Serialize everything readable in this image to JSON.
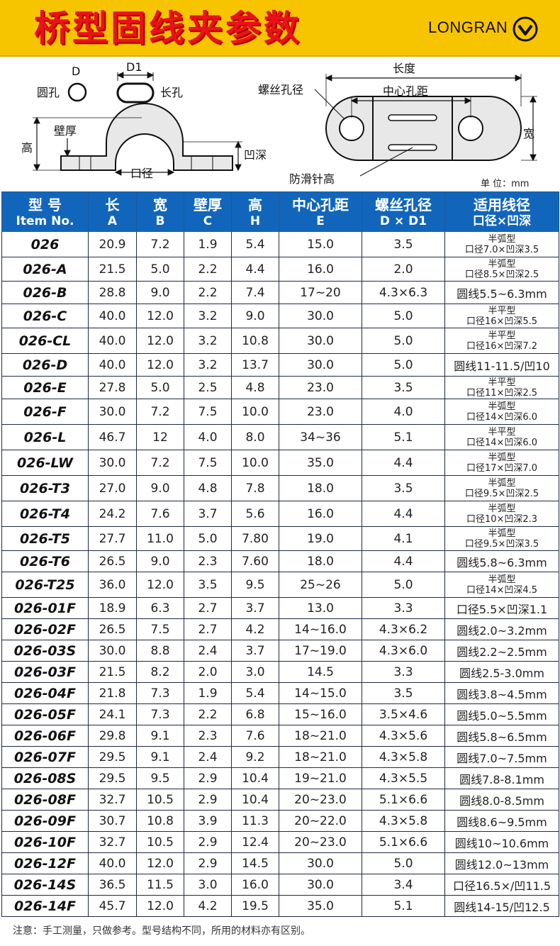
{
  "header": {
    "title": "桥型固线夹参数",
    "brand": "LONGRAN",
    "logo_icon": "chevron-down-circle-icon"
  },
  "diagram": {
    "round_hole_letter": "D",
    "round_hole_label": "圆孔",
    "long_hole_letter": "D1",
    "long_hole_label": "长孔",
    "wall_label": "壁厚",
    "height_label": "高",
    "groove_label": "凹深",
    "mouth_label": "口径",
    "length_label": "长度",
    "screw_label": "螺丝孔径",
    "center_label": "中心孔距",
    "width_label": "宽",
    "antislip_label": "防滑针高",
    "unit": "单 位：mm"
  },
  "table": {
    "headers": [
      {
        "l1": "型 号",
        "l2": "Item No."
      },
      {
        "l1": "长",
        "l2": "A"
      },
      {
        "l1": "宽",
        "l2": "B"
      },
      {
        "l1": "壁厚",
        "l2": "C"
      },
      {
        "l1": "高",
        "l2": "H"
      },
      {
        "l1": "中心孔距",
        "l2": "E"
      },
      {
        "l1": "螺丝孔径",
        "l2": "D × D1"
      },
      {
        "l1": "适用线径",
        "l2": "口径×凹深"
      }
    ],
    "rows": [
      {
        "model": "026",
        "a": "20.9",
        "b": "7.2",
        "c": "1.9",
        "h": "5.4",
        "e": "15.0",
        "d": "3.5",
        "fit1": "半弧型",
        "fit2": "口径7.0×凹深3.5"
      },
      {
        "model": "026-A",
        "a": "21.5",
        "b": "5.0",
        "c": "2.2",
        "h": "4.4",
        "e": "16.0",
        "d": "2.0",
        "fit1": "半弧型",
        "fit2": "口径8.5×凹深2.5"
      },
      {
        "model": "026-B",
        "a": "28.8",
        "b": "9.0",
        "c": "2.2",
        "h": "7.4",
        "e": "17~20",
        "d": "4.3×6.3",
        "fit": "圆线5.5~6.3mm"
      },
      {
        "model": "026-C",
        "a": "40.0",
        "b": "12.0",
        "c": "3.2",
        "h": "9.0",
        "e": "30.0",
        "d": "5.0",
        "fit1": "半平型",
        "fit2": "口径16×凹深5.5"
      },
      {
        "model": "026-CL",
        "a": "40.0",
        "b": "12.0",
        "c": "3.2",
        "h": "10.8",
        "e": "30.0",
        "d": "5.0",
        "fit1": "半平型",
        "fit2": "口径16×凹深7.2"
      },
      {
        "model": "026-D",
        "a": "40.0",
        "b": "12.0",
        "c": "3.2",
        "h": "13.7",
        "e": "30.0",
        "d": "5.0",
        "fit": "圆线11-11.5/凹10"
      },
      {
        "model": "026-E",
        "a": "27.8",
        "b": "5.0",
        "c": "2.5",
        "h": "4.8",
        "e": "23.0",
        "d": "3.5",
        "fit1": "半平型",
        "fit2": "口径11×凹深2.5"
      },
      {
        "model": "026-F",
        "a": "30.0",
        "b": "7.2",
        "c": "7.5",
        "h": "10.0",
        "e": "23.0",
        "d": "4.0",
        "fit1": "半弧型",
        "fit2": "口径14×凹深6.0"
      },
      {
        "model": "026-L",
        "a": "46.7",
        "b": "12",
        "c": "4.0",
        "h": "8.0",
        "e": "34~36",
        "d": "5.1",
        "fit1": "半平型",
        "fit2": "口径14×凹深6.0"
      },
      {
        "model": "026-LW",
        "a": "30.0",
        "b": "7.2",
        "c": "7.5",
        "h": "10.0",
        "e": "35.0",
        "d": "4.4",
        "fit1": "半弧型",
        "fit2": "口径17×凹深7.0"
      },
      {
        "model": "026-T3",
        "a": "27.0",
        "b": "9.0",
        "c": "4.8",
        "h": "7.8",
        "e": "18.0",
        "d": "3.5",
        "fit1": "半弧型",
        "fit2": "口径9.5×凹深2.5"
      },
      {
        "model": "026-T4",
        "a": "24.2",
        "b": "7.6",
        "c": "3.7",
        "h": "5.6",
        "e": "16.0",
        "d": "4.4",
        "fit1": "半弧型",
        "fit2": "口径10×凹深2.3"
      },
      {
        "model": "026-T5",
        "a": "27.7",
        "b": "11.0",
        "c": "5.0",
        "h": "7.80",
        "e": "19.0",
        "d": "4.1",
        "fit1": "半弧型",
        "fit2": "口径9.5×凹深3.5"
      },
      {
        "model": "026-T6",
        "a": "26.5",
        "b": "9.0",
        "c": "2.3",
        "h": "7.60",
        "e": "18.0",
        "d": "4.4",
        "fit": "圆线5.8~6.3mm"
      },
      {
        "model": "026-T25",
        "a": "36.0",
        "b": "12.0",
        "c": "3.5",
        "h": "9.5",
        "e": "25~26",
        "d": "5.0",
        "fit1": "半弧型",
        "fit2": "口径14×凹深4.5"
      },
      {
        "model": "026-01F",
        "a": "18.9",
        "b": "6.3",
        "c": "2.7",
        "h": "3.7",
        "e": "13.0",
        "d": "3.3",
        "fit": "口径5.5×凹深1.1"
      },
      {
        "model": "026-02F",
        "a": "26.5",
        "b": "7.5",
        "c": "2.7",
        "h": "4.2",
        "e": "14~16.0",
        "d": "4.3×6.2",
        "fit": "圆线2.0~3.2mm"
      },
      {
        "model": "026-03S",
        "a": "30.0",
        "b": "8.8",
        "c": "2.4",
        "h": "3.7",
        "e": "17~19.0",
        "d": "4.3×6.0",
        "fit": "圆线2.2~2.5mm"
      },
      {
        "model": "026-03F",
        "a": "21.5",
        "b": "8.2",
        "c": "2.0",
        "h": "3.0",
        "e": "14.5",
        "d": "3.3",
        "fit": "圆线2.5-3.0mm"
      },
      {
        "model": "026-04F",
        "a": "21.8",
        "b": "7.3",
        "c": "1.9",
        "h": "5.4",
        "e": "14~15.0",
        "d": "3.5",
        "fit": "圆线3.8~4.5mm"
      },
      {
        "model": "026-05F",
        "a": "24.1",
        "b": "7.3",
        "c": "2.2",
        "h": "6.8",
        "e": "15~16.0",
        "d": "3.5×4.6",
        "fit": "圆线5.0~5.5mm"
      },
      {
        "model": "026-06F",
        "a": "29.8",
        "b": "9.1",
        "c": "2.3",
        "h": "7.6",
        "e": "18~21.0",
        "d": "4.3×5.6",
        "fit": "圆线5.8~6.5mm"
      },
      {
        "model": "026-07F",
        "a": "29.5",
        "b": "9.1",
        "c": "2.4",
        "h": "9.2",
        "e": "18~21.0",
        "d": "4.3×5.8",
        "fit": "圆线7.0~7.5mm"
      },
      {
        "model": "026-08S",
        "a": "29.5",
        "b": "9.5",
        "c": "2.9",
        "h": "10.4",
        "e": "19~21.0",
        "d": "4.3×5.5",
        "fit": "圆线7.8-8.1mm"
      },
      {
        "model": "026-08F",
        "a": "32.7",
        "b": "10.5",
        "c": "2.9",
        "h": "10.4",
        "e": "20~23.0",
        "d": "5.1×6.6",
        "fit": "圆线8.0-8.5mm"
      },
      {
        "model": "026-09F",
        "a": "30.7",
        "b": "10.8",
        "c": "3.9",
        "h": "11.3",
        "e": "20~22.0",
        "d": "4.3×5.8",
        "fit": "圆线8.6~9.5mm"
      },
      {
        "model": "026-10F",
        "a": "32.7",
        "b": "10.5",
        "c": "2.9",
        "h": "12.4",
        "e": "20~23.0",
        "d": "5.1×6.6",
        "fit": "圆线10~10.6mm"
      },
      {
        "model": "026-12F",
        "a": "40.0",
        "b": "12.0",
        "c": "2.9",
        "h": "14.5",
        "e": "30.0",
        "d": "5.0",
        "fit": "圆线12.0~13mm"
      },
      {
        "model": "026-14S",
        "a": "36.5",
        "b": "11.5",
        "c": "3.0",
        "h": "16.0",
        "e": "30.0",
        "d": "3.4",
        "fit": "口径16.5×/凹11.5"
      },
      {
        "model": "026-14F",
        "a": "45.7",
        "b": "12.0",
        "c": "4.2",
        "h": "19.5",
        "e": "35.0",
        "d": "5.1",
        "fit": "圆线14-15/凹12.5"
      }
    ]
  },
  "note": "注意：手工测量，只做参考。型号结构不同，所用的材料亦有区别。"
}
